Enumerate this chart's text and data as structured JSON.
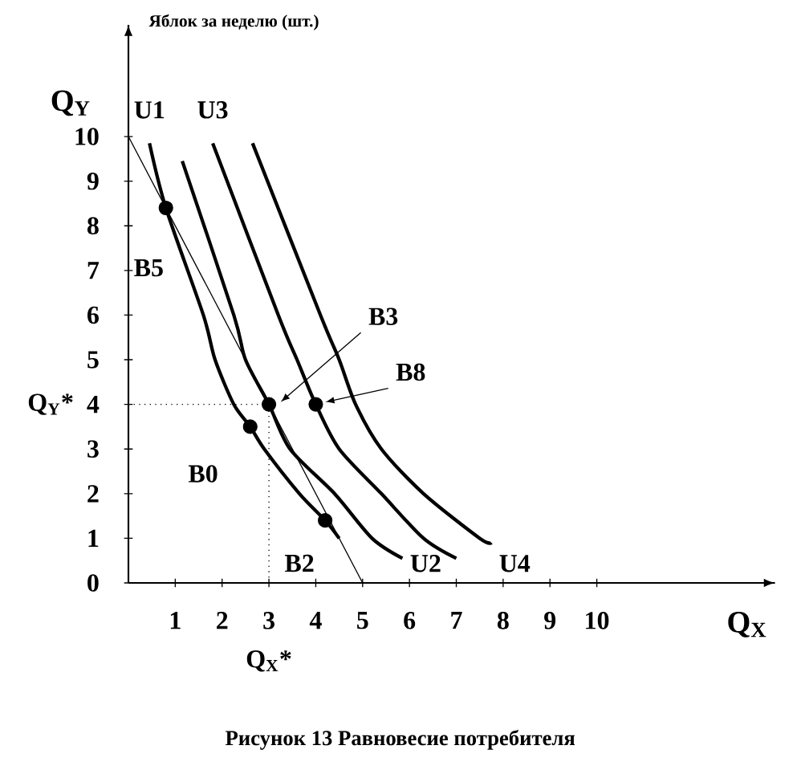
{
  "chart_data": {
    "type": "line",
    "title": "Рисунок 13 Равновесие потребителя",
    "xlabel": "Q$_{X}$",
    "ylabel": "Q$_{Y}$",
    "xlim": [
      0,
      13.8
    ],
    "ylim": [
      0,
      12.5
    ],
    "xticks": [
      1,
      2,
      3,
      4,
      5,
      6,
      7,
      8,
      9,
      10
    ],
    "yticks": [
      0,
      1,
      2,
      3,
      4,
      5,
      6,
      7,
      8,
      9,
      10
    ],
    "grid": false,
    "series": [
      {
        "name": "U1",
        "color": "#000000",
        "x": [
          0.45,
          0.8,
          1.6,
          1.85,
          2.25,
          2.6,
          2.9,
          3.65,
          4.2,
          4.5
        ],
        "values": [
          9.85,
          8.4,
          6,
          5,
          4,
          3.5,
          3,
          2,
          1.4,
          1.0
        ]
      },
      {
        "name": "U2",
        "color": "#000000",
        "x": [
          1.15,
          2.25,
          2.5,
          3,
          3.45,
          4.4,
          5.2,
          5.85
        ],
        "values": [
          9.45,
          6,
          5,
          4,
          3,
          2,
          1,
          0.55
        ]
      },
      {
        "name": "U3",
        "color": "#000000",
        "x": [
          1.8,
          3.2,
          3.6,
          4,
          4.5,
          5.4,
          6.3,
          7
        ],
        "values": [
          9.85,
          6,
          5,
          4,
          3,
          2,
          1,
          0.55
        ]
      },
      {
        "name": "U4",
        "color": "#000000",
        "x": [
          2.65,
          4.1,
          4.5,
          4.85,
          5.4,
          6.3,
          7.5,
          7.75
        ],
        "values": [
          9.85,
          6,
          5,
          4,
          3,
          2,
          1,
          0.9
        ]
      },
      {
        "color": "#000000",
        "x": [
          0,
          5
        ],
        "values": [
          10,
          0
        ]
      },
      {
        "type": "scatter",
        "color": "#000000",
        "x": [
          0.8,
          2.6,
          3,
          4,
          4.2
        ],
        "values": [
          8.4,
          3.5,
          4,
          4,
          1.4
        ]
      }
    ],
    "ref_lines": [
      {
        "axis": "y",
        "value": 4,
        "label": "Q$_{Y}$*",
        "line_style": "dotted"
      },
      {
        "axis": "x",
        "value": 3,
        "label": "Q$_{X}$*",
        "line_style": "dotted"
      }
    ],
    "annotations": [
      {
        "text": "B5",
        "x": 0.8,
        "y": 8.4
      },
      {
        "text": "B3",
        "x": 3.25,
        "y": 4.05
      },
      {
        "text": "B8",
        "x": 4.2,
        "y": 4.05
      },
      {
        "text": "B0",
        "x": 2.6,
        "y": 3.5
      },
      {
        "text": "B2",
        "x": 4.2,
        "y": 1.4
      },
      "Яблок за неделю (шт.)"
    ]
  }
}
